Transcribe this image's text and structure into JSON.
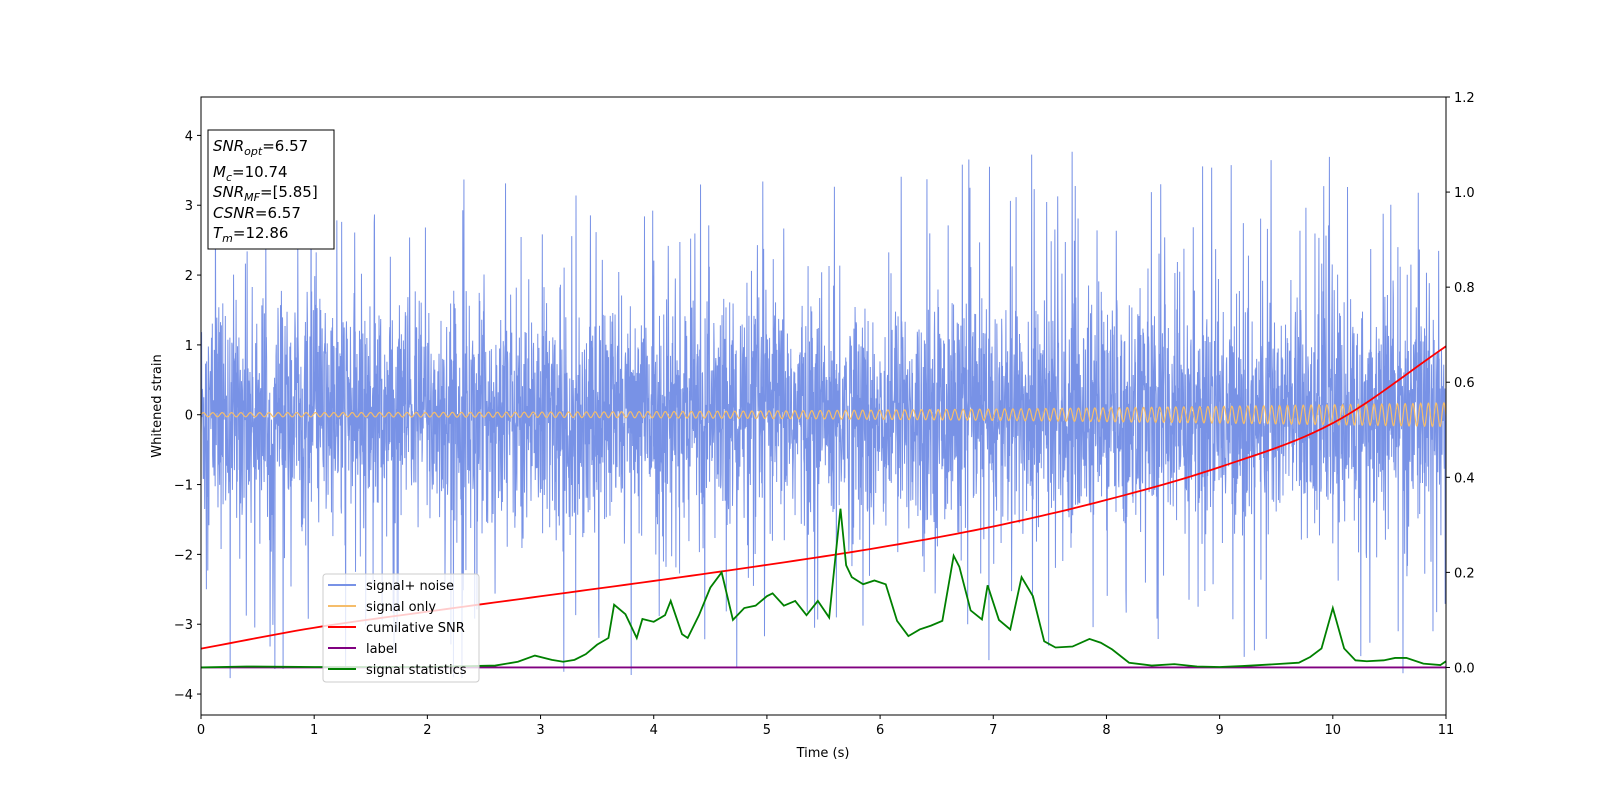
{
  "chart_data": {
    "type": "line",
    "xlabel": "Time (s)",
    "ylabel": "Whitened strain",
    "xlim": [
      0,
      11
    ],
    "ylim_left": [
      -4.3,
      4.55
    ],
    "ylim_right": [
      -0.1,
      1.2
    ],
    "xticks": [
      "0",
      "1",
      "2",
      "3",
      "4",
      "5",
      "6",
      "7",
      "8",
      "9",
      "10",
      "11"
    ],
    "yticks_left": [
      "−4",
      "−3",
      "−2",
      "−1",
      "0",
      "1",
      "2",
      "3",
      "4"
    ],
    "yticks_right": [
      "0.0",
      "0.2",
      "0.4",
      "0.6",
      "0.8",
      "1.0",
      "1.2"
    ],
    "grid": false,
    "legend_location": "lower-left",
    "info_box": {
      "snr_opt": {
        "base": "SNR",
        "sub": "opt",
        "value": "=6.57"
      },
      "mc": {
        "base": "M",
        "sub": "c",
        "value": "=10.74"
      },
      "snr_mf": {
        "base": "SNR",
        "sub": "MF",
        "value": "=[5.85]"
      },
      "csnr": {
        "base": "CSNR",
        "sub": "",
        "value": "=6.57"
      },
      "tm": {
        "base": "T",
        "sub": "m",
        "value": "=12.86"
      }
    },
    "series": [
      {
        "name": "signal+ noise",
        "axis": "left",
        "color": "#7892e6",
        "description": "whitened noise, approx. Gaussian sigma ~1 with spikes up to about +4.2 and -3.9",
        "envelope_typical": [
          -1.7,
          1.9
        ],
        "envelope_extreme": [
          -3.9,
          4.2
        ]
      },
      {
        "name": "signal only",
        "axis": "left",
        "color": "#f5bd6b",
        "description": "chirp oscillation around 0, amplitude grows from ~0.03 at t=0 to ~0.17 at t=11",
        "amplitude_start": 0.03,
        "amplitude_end": 0.17
      },
      {
        "name": "cumilative SNR",
        "axis": "left",
        "color": "#ff0000",
        "x": [
          0,
          1,
          2,
          3,
          4,
          5,
          6,
          7,
          8,
          9,
          10,
          11
        ],
        "y": [
          -3.35,
          -3.05,
          -2.82,
          -2.6,
          -2.38,
          -2.15,
          -1.9,
          -1.6,
          -1.22,
          -0.75,
          -0.12,
          0.98
        ]
      },
      {
        "name": "label",
        "axis": "right",
        "color": "#800080",
        "x": [
          0,
          11
        ],
        "y": [
          0.0,
          0.0
        ]
      },
      {
        "name": "signal statistics",
        "axis": "right",
        "color": "#008000",
        "x": [
          0,
          0.4,
          1.0,
          2.0,
          2.6,
          2.8,
          2.95,
          3.1,
          3.2,
          3.3,
          3.4,
          3.5,
          3.6,
          3.65,
          3.75,
          3.85,
          3.9,
          4.0,
          4.1,
          4.15,
          4.25,
          4.3,
          4.4,
          4.5,
          4.6,
          4.7,
          4.8,
          4.9,
          5.0,
          5.05,
          5.15,
          5.25,
          5.35,
          5.45,
          5.55,
          5.65,
          5.7,
          5.75,
          5.85,
          5.95,
          6.05,
          6.15,
          6.25,
          6.35,
          6.45,
          6.55,
          6.65,
          6.7,
          6.8,
          6.9,
          6.95,
          7.05,
          7.15,
          7.25,
          7.35,
          7.45,
          7.55,
          7.7,
          7.85,
          7.95,
          8.05,
          8.2,
          8.4,
          8.6,
          8.8,
          9.0,
          9.2,
          9.5,
          9.7,
          9.8,
          9.9,
          10.0,
          10.1,
          10.2,
          10.3,
          10.45,
          10.55,
          10.65,
          10.8,
          10.95,
          11.0
        ],
        "y": [
          0.0,
          0.002,
          0.001,
          0.001,
          0.004,
          0.012,
          0.025,
          0.016,
          0.012,
          0.016,
          0.028,
          0.048,
          0.062,
          0.132,
          0.112,
          0.062,
          0.102,
          0.096,
          0.11,
          0.14,
          0.07,
          0.062,
          0.11,
          0.168,
          0.2,
          0.1,
          0.125,
          0.13,
          0.15,
          0.156,
          0.13,
          0.14,
          0.11,
          0.14,
          0.105,
          0.334,
          0.215,
          0.19,
          0.175,
          0.183,
          0.175,
          0.098,
          0.066,
          0.08,
          0.088,
          0.098,
          0.235,
          0.212,
          0.12,
          0.101,
          0.173,
          0.1,
          0.08,
          0.19,
          0.15,
          0.055,
          0.042,
          0.044,
          0.06,
          0.052,
          0.038,
          0.01,
          0.004,
          0.007,
          0.002,
          0.001,
          0.003,
          0.007,
          0.01,
          0.022,
          0.04,
          0.125,
          0.04,
          0.015,
          0.013,
          0.015,
          0.02,
          0.02,
          0.008,
          0.005,
          0.013
        ]
      }
    ]
  }
}
